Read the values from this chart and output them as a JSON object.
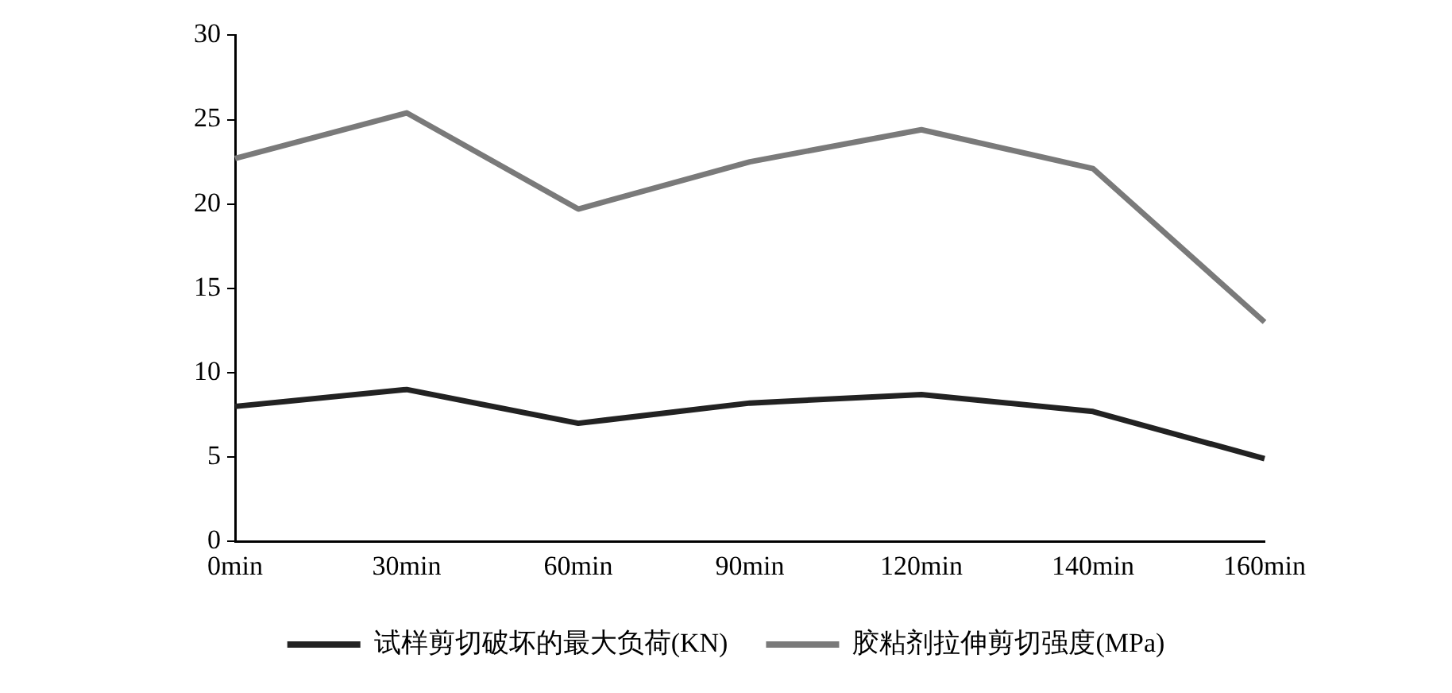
{
  "chart_data": {
    "type": "line",
    "categories": [
      "0min",
      "30min",
      "60min",
      "90min",
      "120min",
      "140min",
      "160min"
    ],
    "series": [
      {
        "name": "试样剪切破坏的最大负荷(KN)",
        "color": "#222222",
        "values": [
          8.0,
          9.0,
          7.0,
          8.2,
          8.7,
          7.7,
          4.9
        ]
      },
      {
        "name": "胶粘剂拉伸剪切强度(MPa)",
        "color": "#7a7a7a",
        "values": [
          22.7,
          25.4,
          19.7,
          22.5,
          24.4,
          22.1,
          13.0
        ]
      }
    ],
    "ylim": [
      0,
      30
    ],
    "yticks": [
      0,
      5,
      10,
      15,
      20,
      25,
      30
    ],
    "grid": false,
    "legend": "bottom",
    "marker": "none",
    "line_style": "solid"
  }
}
